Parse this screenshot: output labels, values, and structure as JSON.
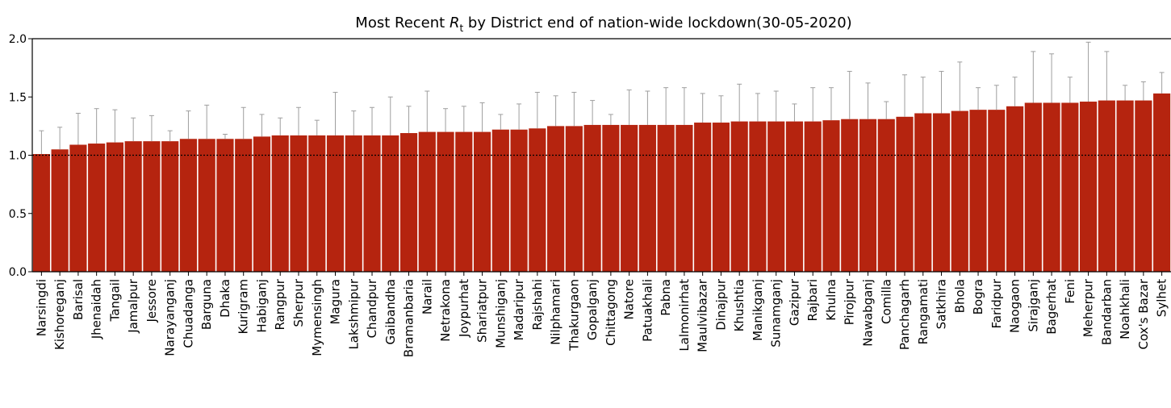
{
  "chart_data": {
    "type": "bar",
    "title_prefix": "Most Recent ",
    "title_symbol": "R",
    "title_subscript": "t",
    "title_suffix": " by District end of nation-wide lockdown(30-05-2020)",
    "xlabel": "",
    "ylabel": "",
    "ylim": [
      0,
      2.0
    ],
    "yticks": [
      "0.0",
      "0.5",
      "1.0",
      "1.5",
      "2.0"
    ],
    "reference_line": 1.0,
    "grid": false,
    "legend": "none",
    "colors": {
      "bar": "#b5240f",
      "error": "#9e9e9e",
      "reference": "#000000"
    },
    "categories": [
      "Narsingdi",
      "Kishoreganj",
      "Barisal",
      "Jhenaidah",
      "Tangail",
      "Jamalpur",
      "Jessore",
      "Narayanganj",
      "Chuadanga",
      "Barguna",
      "Dhaka",
      "Kurigram",
      "Habiganj",
      "Rangpur",
      "Sherpur",
      "Mymensingh",
      "Magura",
      "Lakshmipur",
      "Chandpur",
      "Gaibandha",
      "Bramanbaria",
      "Narail",
      "Netrakona",
      "Joypurhat",
      "Shariatpur",
      "Munshiganj",
      "Madaripur",
      "Rajshahi",
      "Nilphamari",
      "Thakurgaon",
      "Gopalganj",
      "Chittagong",
      "Natore",
      "Patuakhali",
      "Pabna",
      "Lalmonirhat",
      "Maulvibazar",
      "Dinajpur",
      "Khushtia",
      "Manikganj",
      "Sunamganj",
      "Gazipur",
      "Rajbari",
      "Khulna",
      "Pirojpur",
      "Nawabganj",
      "Comilla",
      "Panchagarh",
      "Rangamati",
      "Satkhira",
      "Bhola",
      "Bogra",
      "Faridpur",
      "Naogaon",
      "Sirajganj",
      "Bagerhat",
      "Feni",
      "Meherpur",
      "Bandarban",
      "Noahkhali",
      "Cox's Bazar",
      "Sylhet"
    ],
    "values": [
      1.01,
      1.05,
      1.09,
      1.1,
      1.11,
      1.12,
      1.12,
      1.12,
      1.14,
      1.14,
      1.14,
      1.14,
      1.16,
      1.17,
      1.17,
      1.17,
      1.17,
      1.17,
      1.17,
      1.17,
      1.19,
      1.2,
      1.2,
      1.2,
      1.2,
      1.22,
      1.22,
      1.23,
      1.25,
      1.25,
      1.26,
      1.26,
      1.26,
      1.26,
      1.26,
      1.26,
      1.28,
      1.28,
      1.29,
      1.29,
      1.29,
      1.29,
      1.29,
      1.3,
      1.31,
      1.31,
      1.31,
      1.33,
      1.36,
      1.36,
      1.38,
      1.39,
      1.39,
      1.42,
      1.45,
      1.45,
      1.45,
      1.46,
      1.47,
      1.47,
      1.47,
      1.53
    ],
    "upper": [
      1.21,
      1.24,
      1.36,
      1.4,
      1.39,
      1.32,
      1.34,
      1.21,
      1.38,
      1.43,
      1.18,
      1.41,
      1.35,
      1.32,
      1.41,
      1.3,
      1.54,
      1.38,
      1.41,
      1.5,
      1.42,
      1.55,
      1.4,
      1.42,
      1.45,
      1.35,
      1.44,
      1.54,
      1.51,
      1.54,
      1.47,
      1.35,
      1.56,
      1.55,
      1.58,
      1.58,
      1.53,
      1.51,
      1.61,
      1.53,
      1.55,
      1.44,
      1.58,
      1.58,
      1.72,
      1.62,
      1.46,
      1.69,
      1.67,
      1.72,
      1.8,
      1.58,
      1.6,
      1.67,
      1.89,
      1.87,
      1.67,
      1.97,
      1.89,
      1.6,
      1.63,
      1.71
    ]
  }
}
